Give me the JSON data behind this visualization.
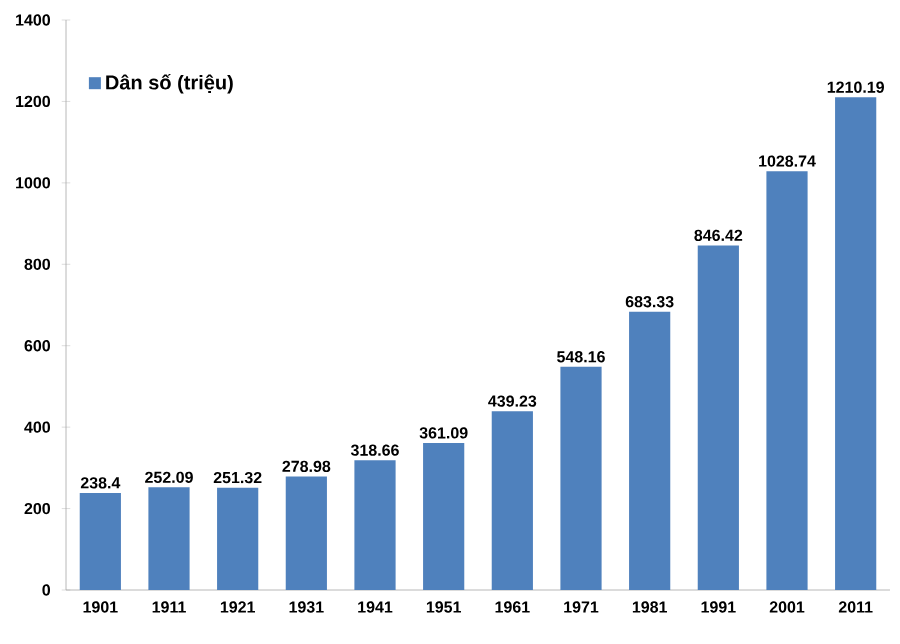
{
  "chart_data": {
    "type": "bar",
    "categories": [
      "1901",
      "1911",
      "1921",
      "1931",
      "1941",
      "1951",
      "1961",
      "1971",
      "1981",
      "1991",
      "2001",
      "2011"
    ],
    "series": [
      {
        "name": "Dân số (triệu)",
        "color": "#4f81bd",
        "values": [
          238.4,
          252.09,
          251.32,
          278.98,
          318.66,
          361.09,
          439.23,
          548.16,
          683.33,
          846.42,
          1028.74,
          1210.19
        ]
      }
    ],
    "ylim": [
      0,
      1400
    ],
    "yticks": [
      0,
      200,
      400,
      600,
      800,
      1000,
      1200,
      1400
    ],
    "data_labels": true,
    "legend": "top left",
    "grid": false
  }
}
